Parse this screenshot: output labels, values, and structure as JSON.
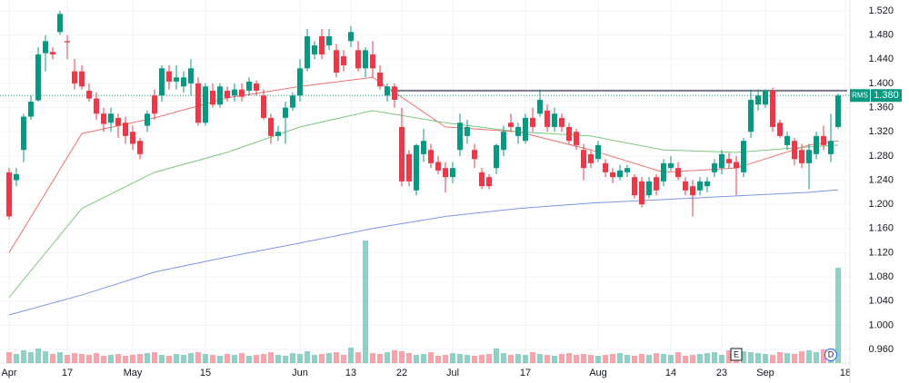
{
  "chart_data": {
    "type": "candlestick",
    "symbol": "RMS",
    "last_price": {
      "value": 1.38,
      "label": "1.380"
    },
    "resistance": 1.388,
    "ylim": [
      0.96,
      1.52
    ],
    "yticks": [
      {
        "value": 0.96,
        "label": "0.960"
      },
      {
        "value": 1.0,
        "label": "1.000"
      },
      {
        "value": 1.04,
        "label": "1.040"
      },
      {
        "value": 1.08,
        "label": "1.080"
      },
      {
        "value": 1.12,
        "label": "1.120"
      },
      {
        "value": 1.16,
        "label": "1.160"
      },
      {
        "value": 1.2,
        "label": "1.200"
      },
      {
        "value": 1.24,
        "label": "1.240"
      },
      {
        "value": 1.28,
        "label": "1.280"
      },
      {
        "value": 1.32,
        "label": "1.320"
      },
      {
        "value": 1.36,
        "label": "1.360"
      },
      {
        "value": 1.4,
        "label": "1.400"
      },
      {
        "value": 1.44,
        "label": "1.440"
      },
      {
        "value": 1.48,
        "label": "1.480"
      },
      {
        "value": 1.52,
        "label": "1.520"
      }
    ],
    "xlabels": [
      {
        "index": 0,
        "label": "Apr"
      },
      {
        "index": 8,
        "label": "17"
      },
      {
        "index": 17,
        "label": "May"
      },
      {
        "index": 27,
        "label": "15"
      },
      {
        "index": 40,
        "label": "Jun"
      },
      {
        "index": 47,
        "label": "13"
      },
      {
        "index": 54,
        "label": "22"
      },
      {
        "index": 61,
        "label": "Jul"
      },
      {
        "index": 71,
        "label": "17"
      },
      {
        "index": 81,
        "label": "Aug"
      },
      {
        "index": 91,
        "label": "14"
      },
      {
        "index": 98,
        "label": "23"
      },
      {
        "index": 104,
        "label": "Sep"
      },
      {
        "index": 115,
        "label": "18"
      }
    ],
    "events": [
      {
        "index": 100,
        "label": "E"
      },
      {
        "index": 113,
        "label": "D"
      }
    ],
    "up_color": "#089981",
    "down_color": "#f23645",
    "ohlc": [
      [
        1.253,
        1.26,
        1.175,
        1.18
      ],
      [
        1.24,
        1.26,
        1.23,
        1.25
      ],
      [
        1.29,
        1.35,
        1.27,
        1.345
      ],
      [
        1.345,
        1.38,
        1.34,
        1.37
      ],
      [
        1.372,
        1.46,
        1.37,
        1.448
      ],
      [
        1.45,
        1.48,
        1.42,
        1.47
      ],
      [
        1.452,
        1.46,
        1.44,
        1.448
      ],
      [
        1.485,
        1.52,
        1.48,
        1.515
      ],
      [
        1.47,
        1.48,
        1.44,
        1.468
      ],
      [
        1.42,
        1.44,
        1.39,
        1.4
      ],
      [
        1.42,
        1.43,
        1.39,
        1.395
      ],
      [
        1.388,
        1.4,
        1.37,
        1.375
      ],
      [
        1.375,
        1.385,
        1.34,
        1.35
      ],
      [
        1.35,
        1.36,
        1.32,
        1.333
      ],
      [
        1.335,
        1.36,
        1.32,
        1.35
      ],
      [
        1.343,
        1.35,
        1.31,
        1.33
      ],
      [
        1.335,
        1.345,
        1.3,
        1.313
      ],
      [
        1.32,
        1.33,
        1.29,
        1.3
      ],
      [
        1.305,
        1.31,
        1.275,
        1.283
      ],
      [
        1.33,
        1.355,
        1.32,
        1.35
      ],
      [
        1.38,
        1.39,
        1.34,
        1.35
      ],
      [
        1.38,
        1.43,
        1.37,
        1.425
      ],
      [
        1.42,
        1.43,
        1.39,
        1.403
      ],
      [
        1.403,
        1.43,
        1.39,
        1.41
      ],
      [
        1.395,
        1.42,
        1.385,
        1.41
      ],
      [
        1.4,
        1.44,
        1.38,
        1.425
      ],
      [
        1.4,
        1.41,
        1.33,
        1.335
      ],
      [
        1.335,
        1.4,
        1.33,
        1.395
      ],
      [
        1.388,
        1.4,
        1.36,
        1.365
      ],
      [
        1.365,
        1.4,
        1.36,
        1.395
      ],
      [
        1.388,
        1.395,
        1.37,
        1.376
      ],
      [
        1.38,
        1.4,
        1.37,
        1.39
      ],
      [
        1.39,
        1.4,
        1.37,
        1.378
      ],
      [
        1.388,
        1.41,
        1.38,
        1.403
      ],
      [
        1.4,
        1.405,
        1.38,
        1.388
      ],
      [
        1.38,
        1.39,
        1.34,
        1.343
      ],
      [
        1.343,
        1.35,
        1.3,
        1.313
      ],
      [
        1.313,
        1.33,
        1.305,
        1.32
      ],
      [
        1.343,
        1.37,
        1.3,
        1.36
      ],
      [
        1.36,
        1.385,
        1.355,
        1.38
      ],
      [
        1.38,
        1.44,
        1.37,
        1.425
      ],
      [
        1.425,
        1.49,
        1.42,
        1.478
      ],
      [
        1.448,
        1.47,
        1.44,
        1.463
      ],
      [
        1.478,
        1.49,
        1.44,
        1.448
      ],
      [
        1.463,
        1.49,
        1.455,
        1.478
      ],
      [
        1.455,
        1.465,
        1.41,
        1.418
      ],
      [
        1.445,
        1.455,
        1.42,
        1.43
      ],
      [
        1.47,
        1.495,
        1.46,
        1.485
      ],
      [
        1.455,
        1.47,
        1.42,
        1.425
      ],
      [
        1.425,
        1.46,
        1.41,
        1.455
      ],
      [
        1.448,
        1.47,
        1.41,
        1.425
      ],
      [
        1.418,
        1.43,
        1.39,
        1.395
      ],
      [
        1.38,
        1.4,
        1.37,
        1.395
      ],
      [
        1.395,
        1.4,
        1.36,
        1.373
      ],
      [
        1.328,
        1.36,
        1.23,
        1.238
      ],
      [
        1.283,
        1.29,
        1.23,
        1.238
      ],
      [
        1.223,
        1.3,
        1.215,
        1.298
      ],
      [
        1.283,
        1.325,
        1.27,
        1.305
      ],
      [
        1.29,
        1.3,
        1.26,
        1.268
      ],
      [
        1.27,
        1.28,
        1.25,
        1.256
      ],
      [
        1.26,
        1.27,
        1.22,
        1.245
      ],
      [
        1.245,
        1.27,
        1.235,
        1.26
      ],
      [
        1.29,
        1.35,
        1.28,
        1.335
      ],
      [
        1.313,
        1.34,
        1.3,
        1.328
      ],
      [
        1.29,
        1.3,
        1.26,
        1.275
      ],
      [
        1.253,
        1.26,
        1.225,
        1.23
      ],
      [
        1.245,
        1.25,
        1.225,
        1.23
      ],
      [
        1.26,
        1.3,
        1.25,
        1.298
      ],
      [
        1.29,
        1.33,
        1.28,
        1.32
      ],
      [
        1.335,
        1.35,
        1.32,
        1.328
      ],
      [
        1.313,
        1.335,
        1.3,
        1.328
      ],
      [
        1.305,
        1.35,
        1.3,
        1.343
      ],
      [
        1.343,
        1.36,
        1.32,
        1.328
      ],
      [
        1.35,
        1.39,
        1.345,
        1.373
      ],
      [
        1.355,
        1.365,
        1.32,
        1.328
      ],
      [
        1.328,
        1.36,
        1.32,
        1.35
      ],
      [
        1.343,
        1.35,
        1.32,
        1.328
      ],
      [
        1.328,
        1.335,
        1.3,
        1.305
      ],
      [
        1.32,
        1.325,
        1.29,
        1.298
      ],
      [
        1.29,
        1.3,
        1.24,
        1.26
      ],
      [
        1.283,
        1.29,
        1.26,
        1.268
      ],
      [
        1.275,
        1.305,
        1.27,
        1.298
      ],
      [
        1.268,
        1.275,
        1.245,
        1.253
      ],
      [
        1.253,
        1.26,
        1.235,
        1.245
      ],
      [
        1.245,
        1.265,
        1.24,
        1.256
      ],
      [
        1.253,
        1.265,
        1.245,
        1.26
      ],
      [
        1.245,
        1.25,
        1.21,
        1.215
      ],
      [
        1.238,
        1.245,
        1.195,
        1.2
      ],
      [
        1.215,
        1.245,
        1.21,
        1.238
      ],
      [
        1.245,
        1.25,
        1.215,
        1.223
      ],
      [
        1.238,
        1.275,
        1.23,
        1.268
      ],
      [
        1.26,
        1.28,
        1.255,
        1.268
      ],
      [
        1.26,
        1.27,
        1.24,
        1.245
      ],
      [
        1.238,
        1.245,
        1.215,
        1.223
      ],
      [
        1.23,
        1.24,
        1.18,
        1.215
      ],
      [
        1.223,
        1.245,
        1.215,
        1.238
      ],
      [
        1.23,
        1.245,
        1.22,
        1.238
      ],
      [
        1.253,
        1.275,
        1.245,
        1.268
      ],
      [
        1.26,
        1.29,
        1.25,
        1.283
      ],
      [
        1.275,
        1.285,
        1.26,
        1.268
      ],
      [
        1.27,
        1.28,
        1.215,
        1.26
      ],
      [
        1.253,
        1.31,
        1.245,
        1.305
      ],
      [
        1.32,
        1.39,
        1.31,
        1.373
      ],
      [
        1.365,
        1.39,
        1.355,
        1.38
      ],
      [
        1.365,
        1.39,
        1.36,
        1.388
      ],
      [
        1.388,
        1.393,
        1.32,
        1.328
      ],
      [
        1.335,
        1.34,
        1.31,
        1.313
      ],
      [
        1.298,
        1.32,
        1.29,
        1.313
      ],
      [
        1.305,
        1.31,
        1.265,
        1.275
      ],
      [
        1.29,
        1.3,
        1.26,
        1.268
      ],
      [
        1.268,
        1.3,
        1.225,
        1.29
      ],
      [
        1.283,
        1.32,
        1.275,
        1.313
      ],
      [
        1.313,
        1.33,
        1.29,
        1.298
      ],
      [
        1.283,
        1.35,
        1.27,
        1.305
      ],
      [
        1.328,
        1.383,
        1.325,
        1.38
      ]
    ],
    "volume": [
      12,
      10,
      14,
      12,
      16,
      13,
      10,
      12,
      9,
      11,
      10,
      9,
      11,
      8,
      9,
      10,
      8,
      9,
      10,
      11,
      12,
      9,
      8,
      10,
      9,
      11,
      12,
      10,
      9,
      8,
      10,
      9,
      11,
      8,
      9,
      10,
      12,
      9,
      8,
      11,
      10,
      13,
      9,
      10,
      11,
      12,
      9,
      17,
      12,
      135,
      11,
      10,
      12,
      14,
      13,
      11,
      9,
      10,
      12,
      8,
      9,
      11,
      10,
      9,
      8,
      9,
      10,
      16,
      11,
      9,
      10,
      9,
      12,
      10,
      9,
      8,
      10,
      11,
      9,
      10,
      9,
      8,
      9,
      10,
      11,
      9,
      8,
      10,
      9,
      11,
      10,
      9,
      12,
      8,
      9,
      10,
      11,
      12,
      9,
      14,
      10,
      13,
      12,
      11,
      10,
      9,
      12,
      11,
      10,
      13,
      14,
      12,
      15,
      16,
      105
    ],
    "vlim": [
      0,
      150
    ],
    "ma_index": [
      0,
      10,
      20,
      30,
      40,
      50,
      60,
      70,
      80,
      90,
      100,
      110,
      114
    ],
    "moving_averages": [
      {
        "color": "#f0706f",
        "values": [
          1.12,
          1.317,
          1.343,
          1.376,
          1.395,
          1.41,
          1.328,
          1.32,
          1.29,
          1.253,
          1.26,
          1.298,
          1.305
        ]
      },
      {
        "color": "#7dc67e",
        "values": [
          1.046,
          1.193,
          1.253,
          1.286,
          1.328,
          1.355,
          1.335,
          1.32,
          1.313,
          1.29,
          1.286,
          1.295,
          1.298
        ]
      },
      {
        "color": "#7b96e6",
        "values": [
          1.017,
          1.05,
          1.088,
          1.113,
          1.136,
          1.16,
          1.18,
          1.193,
          1.202,
          1.208,
          1.214,
          1.22,
          1.224
        ]
      }
    ]
  }
}
